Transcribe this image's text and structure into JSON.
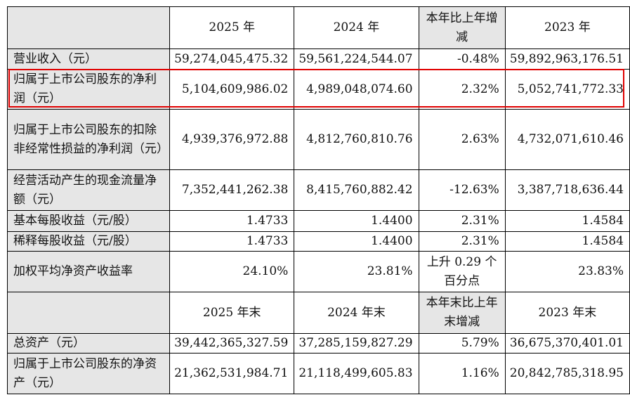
{
  "header1": {
    "col_2025": "2025 年",
    "col_2024": "2024 年",
    "col_change": "本年比上年增减",
    "col_2023": "2023 年"
  },
  "rows1": [
    {
      "label": "营业收入（元）",
      "v2025": "59,274,045,475.32",
      "v2024": "59,561,224,544.07",
      "change": "-0.48%",
      "v2023": "59,892,963,176.51"
    },
    {
      "label": "归属于上市公司股东的净利润（元）",
      "v2025": "5,104,609,986.02",
      "v2024": "4,989,048,074.60",
      "change": "2.32%",
      "v2023": "5,052,741,772.33"
    },
    {
      "label": "归属于上市公司股东的扣除非经常性损益的净利润（元）",
      "v2025": "4,939,376,972.88",
      "v2024": "4,812,760,810.76",
      "change": "2.63%",
      "v2023": "4,732,071,610.46"
    },
    {
      "label": "经营活动产生的现金流量净额（元）",
      "v2025": "7,352,441,262.38",
      "v2024": "8,415,760,882.42",
      "change": "-12.63%",
      "v2023": "3,387,718,636.44"
    },
    {
      "label": "基本每股收益（元/股）",
      "v2025": "1.4733",
      "v2024": "1.4400",
      "change": "2.31%",
      "v2023": "1.4584"
    },
    {
      "label": "稀释每股收益（元/股）",
      "v2025": "1.4733",
      "v2024": "1.4400",
      "change": "2.31%",
      "v2023": "1.4584"
    },
    {
      "label": "加权平均净资产收益率",
      "v2025": "24.10%",
      "v2024": "23.81%",
      "change": "上升 0.29 个百分点",
      "v2023": "23.83%"
    }
  ],
  "header2": {
    "col_2025": "2025 年末",
    "col_2024": "2024 年末",
    "col_change": "本年末比上年末增减",
    "col_2023": "2023 年末"
  },
  "rows2": [
    {
      "label": "总资产（元）",
      "v2025": "39,442,365,327.59",
      "v2024": "37,285,159,827.29",
      "change": "5.79%",
      "v2023": "36,675,370,401.01"
    },
    {
      "label": "归属于上市公司股东的净资产（元）",
      "v2025": "21,362,531,984.71",
      "v2024": "21,118,499,605.83",
      "change": "1.16%",
      "v2023": "20,842,785,318.95"
    }
  ],
  "highlight_color": "#e00000"
}
